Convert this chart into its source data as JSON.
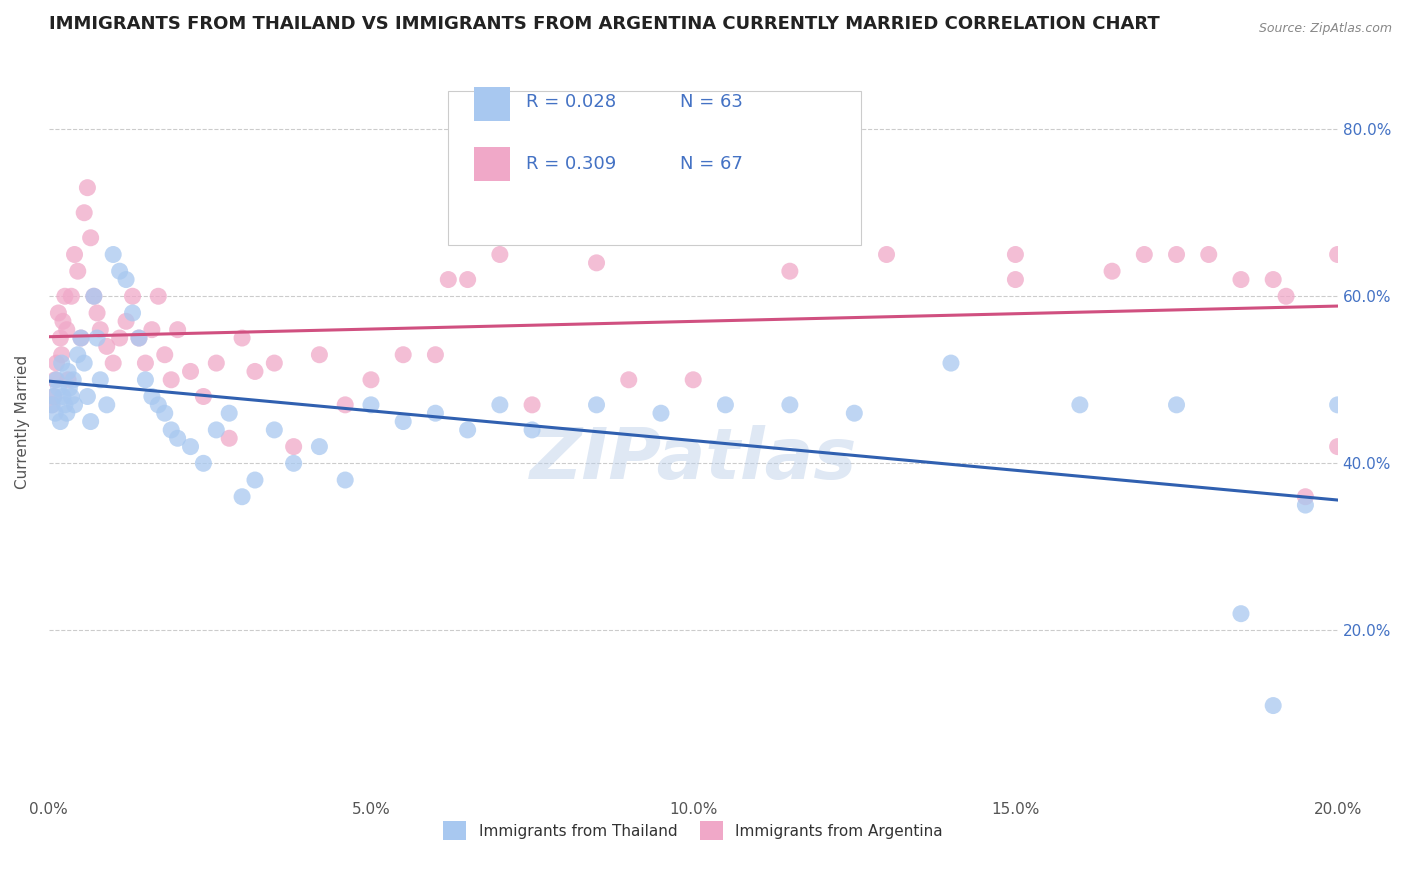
{
  "title": "IMMIGRANTS FROM THAILAND VS IMMIGRANTS FROM ARGENTINA CURRENTLY MARRIED CORRELATION CHART",
  "source_text": "Source: ZipAtlas.com",
  "ylabel": "Currently Married",
  "x_min": 0.0,
  "x_max": 20.0,
  "y_min": 0.0,
  "y_max": 90.0,
  "y_ticks": [
    20.0,
    40.0,
    60.0,
    80.0
  ],
  "y_tick_labels": [
    "20.0%",
    "40.0%",
    "60.0%",
    "80.0%"
  ],
  "thailand_color": "#a8c8f0",
  "argentina_color": "#f0a8c8",
  "thailand_line_color": "#3060b0",
  "argentina_line_color": "#d05080",
  "thailand_R": 0.028,
  "thailand_N": 63,
  "argentina_R": 0.309,
  "argentina_N": 67,
  "background_color": "#ffffff",
  "grid_color": "#cccccc",
  "watermark_text": "ZIPatlas",
  "title_fontsize": 13,
  "axis_label_fontsize": 11,
  "tick_fontsize": 11,
  "legend_fontsize": 13,
  "right_tick_color": "#4472c4",
  "thailand_x": [
    0.05,
    0.08,
    0.1,
    0.12,
    0.15,
    0.18,
    0.2,
    0.22,
    0.25,
    0.28,
    0.3,
    0.32,
    0.35,
    0.38,
    0.4,
    0.45,
    0.5,
    0.55,
    0.6,
    0.65,
    0.7,
    0.75,
    0.8,
    0.9,
    1.0,
    1.1,
    1.2,
    1.3,
    1.4,
    1.5,
    1.6,
    1.7,
    1.8,
    1.9,
    2.0,
    2.2,
    2.4,
    2.6,
    2.8,
    3.0,
    3.2,
    3.5,
    3.8,
    4.2,
    4.6,
    5.0,
    5.5,
    6.0,
    6.5,
    7.0,
    7.5,
    8.5,
    9.5,
    10.5,
    11.5,
    12.5,
    14.0,
    16.0,
    17.5,
    18.5,
    19.0,
    19.5,
    20.0
  ],
  "thailand_y": [
    47,
    48,
    46,
    50,
    49,
    45,
    52,
    48,
    47,
    46,
    51,
    49,
    48,
    50,
    47,
    53,
    55,
    52,
    48,
    45,
    60,
    55,
    50,
    47,
    65,
    63,
    62,
    58,
    55,
    50,
    48,
    47,
    46,
    44,
    43,
    42,
    40,
    44,
    46,
    36,
    38,
    44,
    40,
    42,
    38,
    47,
    45,
    46,
    44,
    47,
    44,
    47,
    46,
    47,
    47,
    46,
    52,
    47,
    47,
    22,
    11,
    35,
    47
  ],
  "argentina_x": [
    0.05,
    0.08,
    0.1,
    0.12,
    0.15,
    0.18,
    0.2,
    0.22,
    0.25,
    0.28,
    0.3,
    0.35,
    0.4,
    0.45,
    0.5,
    0.55,
    0.6,
    0.65,
    0.7,
    0.75,
    0.8,
    0.9,
    1.0,
    1.1,
    1.2,
    1.3,
    1.4,
    1.5,
    1.6,
    1.7,
    1.8,
    1.9,
    2.0,
    2.2,
    2.4,
    2.6,
    2.8,
    3.0,
    3.2,
    3.5,
    3.8,
    4.2,
    4.6,
    5.0,
    5.5,
    6.0,
    6.2,
    6.5,
    7.0,
    7.5,
    8.5,
    9.0,
    10.0,
    11.5,
    13.0,
    15.0,
    16.5,
    17.5,
    18.0,
    19.0,
    19.5,
    20.0,
    20.0,
    15.0,
    17.0,
    18.5,
    19.2
  ],
  "argentina_y": [
    47,
    48,
    50,
    52,
    58,
    55,
    53,
    57,
    60,
    56,
    50,
    60,
    65,
    63,
    55,
    70,
    73,
    67,
    60,
    58,
    56,
    54,
    52,
    55,
    57,
    60,
    55,
    52,
    56,
    60,
    53,
    50,
    56,
    51,
    48,
    52,
    43,
    55,
    51,
    52,
    42,
    53,
    47,
    50,
    53,
    53,
    62,
    62,
    65,
    47,
    64,
    50,
    50,
    63,
    65,
    65,
    63,
    65,
    65,
    62,
    36,
    65,
    42,
    62,
    65,
    62,
    60
  ]
}
